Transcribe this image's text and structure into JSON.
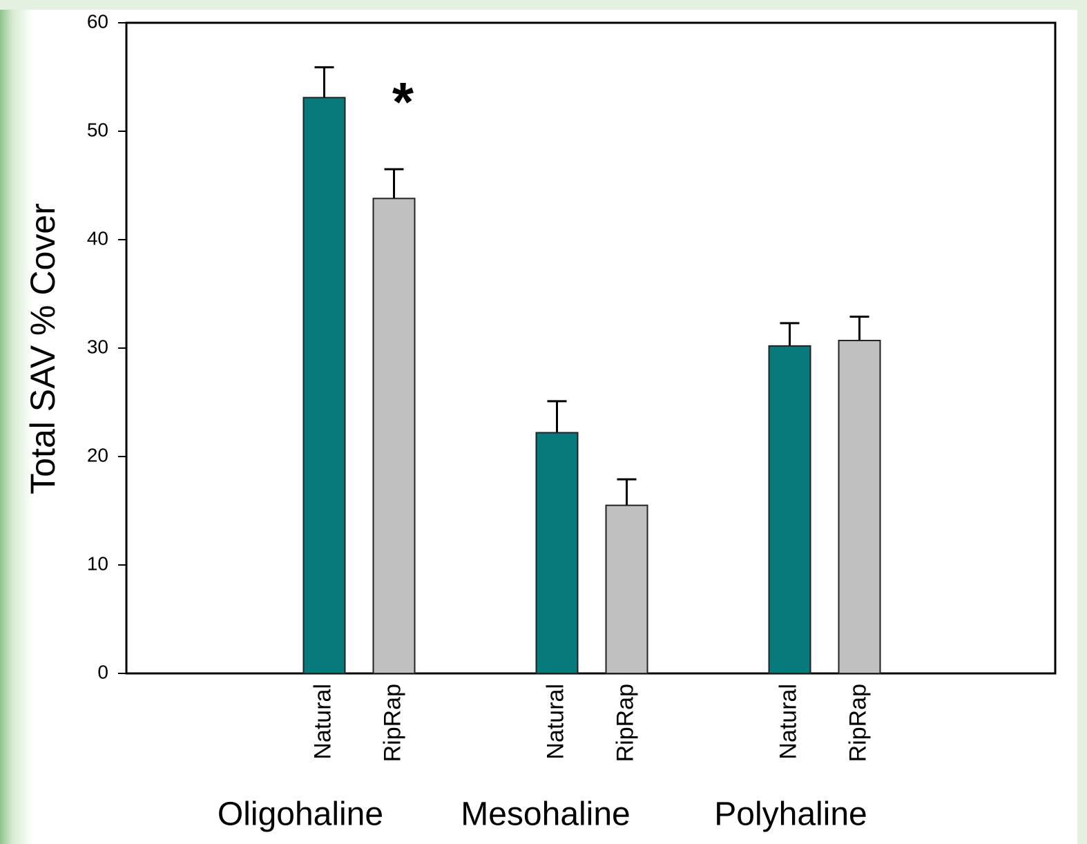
{
  "chart_data": {
    "type": "bar",
    "y_label": "Total SAV % Cover",
    "categories": [
      "Oligohaline",
      "Mesohaline",
      "Polyhaline"
    ],
    "series": [
      {
        "name": "Natural",
        "color": "#077b7b",
        "values": [
          53.1,
          22.2,
          30.2
        ],
        "errors": [
          2.8,
          2.9,
          2.1
        ]
      },
      {
        "name": "RipRap",
        "color": "#c0c0c0",
        "values": [
          43.8,
          15.5,
          30.7
        ],
        "errors": [
          2.7,
          2.4,
          2.2
        ]
      }
    ],
    "annotations": [
      {
        "text": "*",
        "category": 0,
        "series": 1
      }
    ],
    "ylim": [
      0,
      60
    ],
    "yticks": [
      0,
      10,
      20,
      30,
      40,
      50,
      60
    ]
  }
}
